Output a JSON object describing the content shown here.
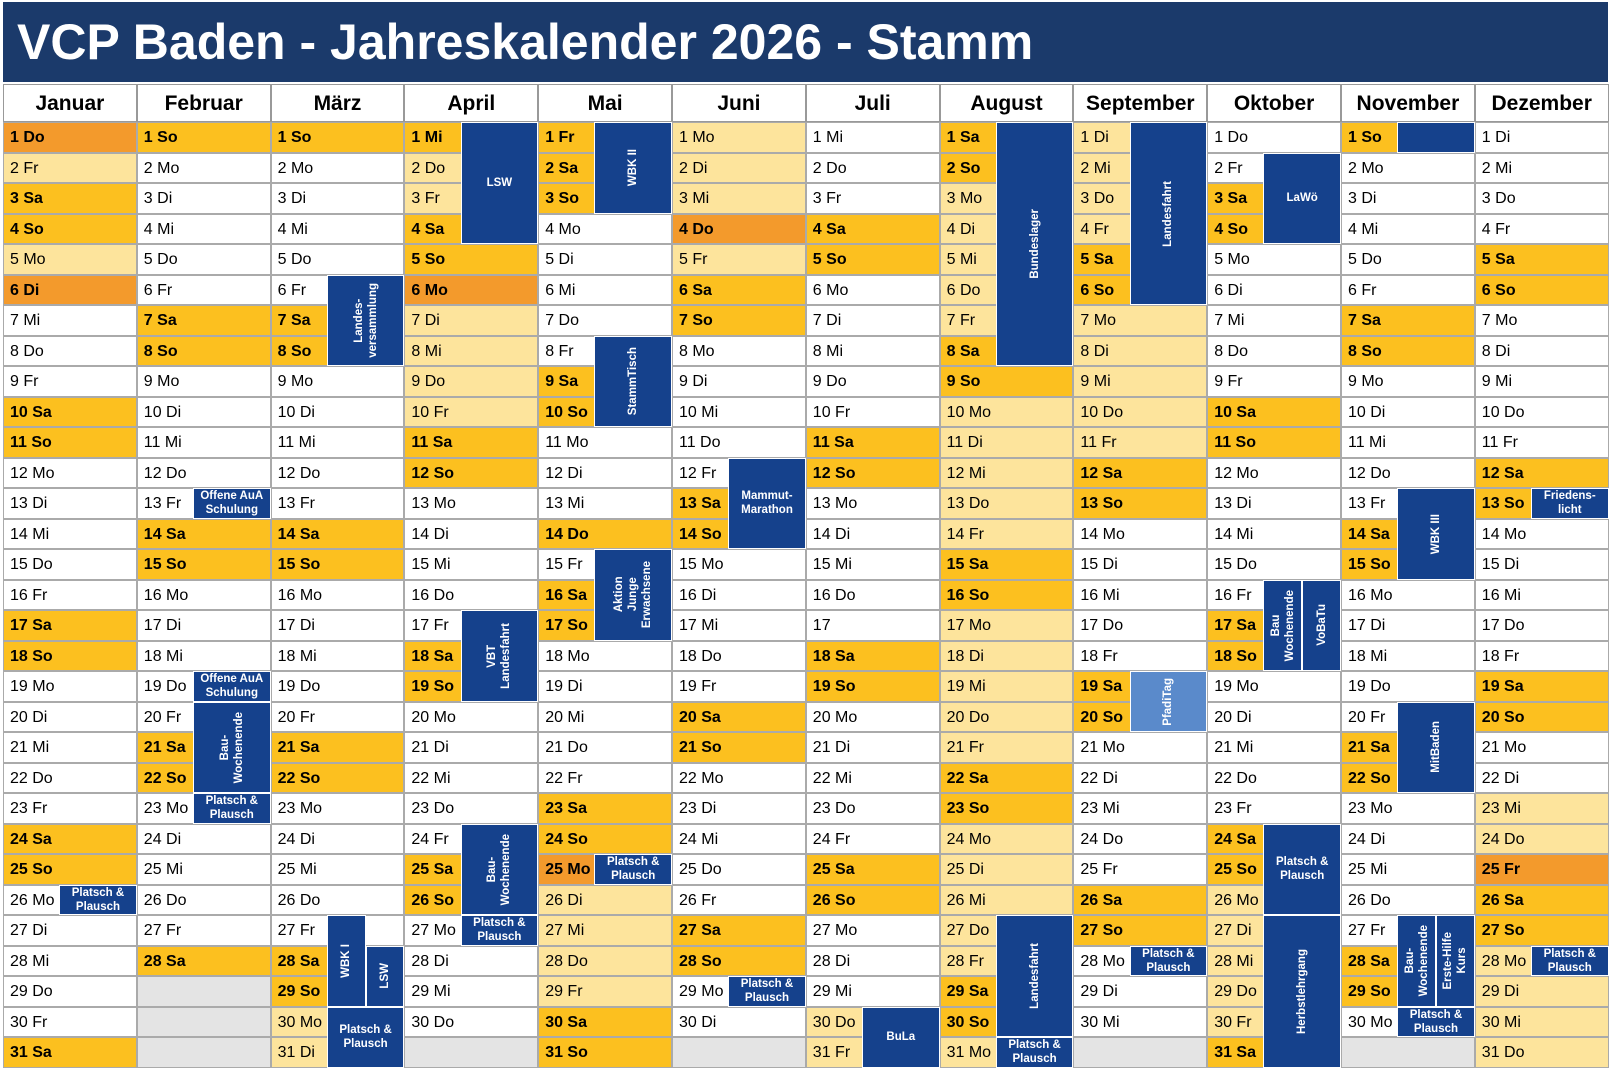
{
  "title": "VCP Baden - Jahreskalender 2026 - Stamm",
  "colors": {
    "orange": "#f39a2c",
    "gold": "#fcc01f",
    "light": "#fde49c",
    "event": "#15418c",
    "grey": "#e4e4e4"
  },
  "months": [
    {
      "name": "Januar",
      "days": [
        "1 Do",
        "2 Fr",
        "3 Sa",
        "4 So",
        "5 Mo",
        "6 Di",
        "7 Mi",
        "8 Do",
        "9 Fr",
        "10 Sa",
        "11 So",
        "12 Mo",
        "13 Di",
        "14 Mi",
        "15 Do",
        "16 Fr",
        "17 Sa",
        "18 So",
        "19 Mo",
        "20 Di",
        "21 Mi",
        "22 Do",
        "23 Fr",
        "24 Sa",
        "25 So",
        "26 Mo",
        "27 Di",
        "28 Mi",
        "29 Do",
        "30 Fr",
        "31 Sa"
      ],
      "orange": [
        1,
        6
      ],
      "gold": [
        3,
        4,
        10,
        11,
        17,
        18,
        24,
        25,
        31
      ],
      "light": [
        2,
        5
      ],
      "events": [
        {
          "label": "Platsch &\nPlausch",
          "from": 26,
          "to": 26
        }
      ]
    },
    {
      "name": "Februar",
      "days": [
        "1 So",
        "2 Mo",
        "3 Di",
        "4 Mi",
        "5 Do",
        "6 Fr",
        "7 Sa",
        "8 So",
        "9 Mo",
        "10 Di",
        "11 Mi",
        "12 Do",
        "13 Fr",
        "14 Sa",
        "15 So",
        "16 Mo",
        "17 Di",
        "18 Mi",
        "19 Do",
        "20 Fr",
        "21 Sa",
        "22 So",
        "23 Mo",
        "24 Di",
        "25 Mi",
        "26 Do",
        "27 Fr",
        "28 Sa"
      ],
      "orange": [],
      "gold": [
        1,
        7,
        8,
        14,
        15,
        21,
        22,
        28
      ],
      "light": [],
      "events": [
        {
          "label": "Offene AuA\nSchulung",
          "from": 13,
          "to": 13
        },
        {
          "label": "Offene AuA\nSchulung",
          "from": 19,
          "to": 19
        },
        {
          "label": "Bau-\nWochenende",
          "from": 20,
          "to": 22,
          "vertical": true
        },
        {
          "label": "Platsch &\nPlausch",
          "from": 23,
          "to": 23
        }
      ]
    },
    {
      "name": "März",
      "days": [
        "1 So",
        "2 Mo",
        "3 Di",
        "4 Mi",
        "5 Do",
        "6 Fr",
        "7 Sa",
        "8 So",
        "9 Mo",
        "10 Di",
        "11 Mi",
        "12 Do",
        "13 Fr",
        "14 Sa",
        "15 So",
        "16 Mo",
        "17 Di",
        "18 Mi",
        "19 Do",
        "20 Fr",
        "21 Sa",
        "22 So",
        "23 Mo",
        "24 Di",
        "25 Mi",
        "26 Do",
        "27 Fr",
        "28 Sa",
        "29 So",
        "30 Mo",
        "31 Di"
      ],
      "orange": [],
      "gold": [
        1,
        7,
        8,
        14,
        15,
        21,
        22,
        28,
        29
      ],
      "light": [
        30,
        31
      ],
      "events": [
        {
          "label": "Landes-\nversammlung",
          "from": 6,
          "to": 8,
          "vertical": true
        },
        {
          "label": "WBK I",
          "from": 27,
          "to": 29,
          "vertical": true,
          "lane": 1
        },
        {
          "label": "LSW",
          "from": 28,
          "to": 29,
          "vertical": true,
          "lane": 2
        },
        {
          "label": "Platsch &\nPlausch",
          "from": 30,
          "to": 31
        }
      ]
    },
    {
      "name": "April",
      "days": [
        "1 Mi",
        "2 Do",
        "3 Fr",
        "4 Sa",
        "5 So",
        "6 Mo",
        "7 Di",
        "8 Mi",
        "9 Do",
        "10 Fr",
        "11 Sa",
        "12 So",
        "13 Mo",
        "14 Di",
        "15 Mi",
        "16 Do",
        "17 Fr",
        "18 Sa",
        "19 So",
        "20 Mo",
        "21 Di",
        "22 Mi",
        "23 Do",
        "24 Fr",
        "25 Sa",
        "26 So",
        "27 Mo",
        "28 Di",
        "29 Mi",
        "30 Do"
      ],
      "orange": [
        6
      ],
      "gold": [
        1,
        4,
        5,
        11,
        12,
        18,
        19,
        25,
        26
      ],
      "light": [
        2,
        3,
        7,
        8,
        9,
        10
      ],
      "events": [
        {
          "label": "LSW",
          "from": 1,
          "to": 4
        },
        {
          "label": "VBT\nLandesfahrt",
          "from": 17,
          "to": 19,
          "vertical": true
        },
        {
          "label": "Bau-\nWochenende",
          "from": 24,
          "to": 26,
          "vertical": true
        },
        {
          "label": "Platsch &\nPlausch",
          "from": 27,
          "to": 27
        }
      ]
    },
    {
      "name": "Mai",
      "days": [
        "1 Fr",
        "2 Sa",
        "3 So",
        "4 Mo",
        "5 Di",
        "6 Mi",
        "7 Do",
        "8 Fr",
        "9 Sa",
        "10 So",
        "11 Mo",
        "12 Di",
        "13 Mi",
        "14 Do",
        "15 Fr",
        "16 Sa",
        "17 So",
        "18 Mo",
        "19 Di",
        "20 Mi",
        "21 Do",
        "22 Fr",
        "23 Sa",
        "24 So",
        "25 Mo",
        "26 Di",
        "27 Mi",
        "28 Do",
        "29 Fr",
        "30 Sa",
        "31 So"
      ],
      "orange": [
        25
      ],
      "gold": [
        1,
        2,
        3,
        9,
        10,
        14,
        16,
        17,
        23,
        24,
        30,
        31
      ],
      "light": [
        26,
        27,
        28,
        29
      ],
      "events": [
        {
          "label": "WBK II",
          "from": 1,
          "to": 3,
          "vertical": true
        },
        {
          "label": "StammTisch",
          "from": 8,
          "to": 10,
          "vertical": true
        },
        {
          "label": "Aktion\nJunge\nErwachsene",
          "from": 15,
          "to": 17,
          "vertical": true
        },
        {
          "label": "Platsch &\nPlausch",
          "from": 25,
          "to": 25
        }
      ]
    },
    {
      "name": "Juni",
      "days": [
        "1 Mo",
        "2 Di",
        "3 Mi",
        "4 Do",
        "5 Fr",
        "6 Sa",
        "7 So",
        "8 Mo",
        "9 Di",
        "10 Mi",
        "11 Do",
        "12 Fr",
        "13 Sa",
        "14 So",
        "15 Mo",
        "16 Di",
        "17 Mi",
        "18 Do",
        "19 Fr",
        "20 Sa",
        "21 So",
        "22 Mo",
        "23 Di",
        "24 Mi",
        "25 Do",
        "26 Fr",
        "27 Sa",
        "28 So",
        "29 Mo",
        "30 Di"
      ],
      "orange": [
        4
      ],
      "gold": [
        6,
        7,
        13,
        14,
        20,
        21,
        27,
        28
      ],
      "light": [
        1,
        2,
        3,
        5
      ],
      "events": [
        {
          "label": "Mammut-\nMarathon",
          "from": 12,
          "to": 14
        },
        {
          "label": "Platsch &\nPlausch",
          "from": 29,
          "to": 29
        }
      ]
    },
    {
      "name": "Juli",
      "days": [
        "1 Mi",
        "2 Do",
        "3 Fr",
        "4 Sa",
        "5 So",
        "6 Mo",
        "7 Di",
        "8 Mi",
        "9 Do",
        "10 Fr",
        "11 Sa",
        "12 So",
        "13 Mo",
        "14 Di",
        "15 Mi",
        "16 Do",
        "17",
        "18 Sa",
        "19 So",
        "20 Mo",
        "21 Di",
        "22 Mi",
        "23 Do",
        "24 Fr",
        "25 Sa",
        "26 So",
        "27 Mo",
        "28 Di",
        "29 Mi",
        "30 Do",
        "31 Fr"
      ],
      "orange": [],
      "gold": [
        4,
        5,
        11,
        12,
        18,
        19,
        25,
        26
      ],
      "light": [
        30,
        31
      ],
      "events": [
        {
          "label": "BuLa",
          "from": 30,
          "to": 31
        }
      ]
    },
    {
      "name": "August",
      "days": [
        "1 Sa",
        "2 So",
        "3 Mo",
        "4 Di",
        "5 Mi",
        "6 Do",
        "7 Fr",
        "8 Sa",
        "9 So",
        "10 Mo",
        "11 Di",
        "12 Mi",
        "13 Do",
        "14 Fr",
        "15 Sa",
        "16 So",
        "17 Mo",
        "18 Di",
        "19 Mi",
        "20 Do",
        "21 Fr",
        "22 Sa",
        "23 So",
        "24 Mo",
        "25 Di",
        "26 Mi",
        "27 Do",
        "28 Fr",
        "29 Sa",
        "30 So",
        "31 Mo"
      ],
      "orange": [],
      "gold": [
        1,
        2,
        8,
        9,
        15,
        16,
        22,
        23,
        29,
        30
      ],
      "light": [
        3,
        4,
        5,
        6,
        7,
        10,
        11,
        12,
        13,
        14,
        17,
        18,
        19,
        20,
        21,
        24,
        25,
        26,
        27,
        28,
        31
      ],
      "events": [
        {
          "label": "Bundeslager",
          "from": 1,
          "to": 8,
          "vertical": true
        },
        {
          "label": "Landesfahrt",
          "from": 27,
          "to": 30,
          "vertical": true
        },
        {
          "label": "Platsch &\nPlausch",
          "from": 31,
          "to": 31
        }
      ]
    },
    {
      "name": "September",
      "days": [
        "1 Di",
        "2 Mi",
        "3 Do",
        "4 Fr",
        "5 Sa",
        "6 So",
        "7 Mo",
        "8 Di",
        "9 Mi",
        "10 Do",
        "11 Fr",
        "12 Sa",
        "13 So",
        "14 Mo",
        "15 Di",
        "16 Mi",
        "17 Do",
        "18 Fr",
        "19 Sa",
        "20 So",
        "21 Mo",
        "22 Di",
        "23 Mi",
        "24 Do",
        "25 Fr",
        "26 Sa",
        "27 So",
        "28 Mo",
        "29 Di",
        "30 Mi"
      ],
      "orange": [],
      "gold": [
        5,
        6,
        12,
        13,
        19,
        20,
        26,
        27
      ],
      "light": [
        1,
        2,
        3,
        4,
        7,
        8,
        9,
        10,
        11
      ],
      "events": [
        {
          "label": "Landesfahrt",
          "from": 1,
          "to": 6,
          "vertical": true
        },
        {
          "label": "PfadiTag",
          "from": 19,
          "to": 20,
          "vertical": true,
          "color": "#5a8acb"
        },
        {
          "label": "Platsch &\nPlausch",
          "from": 28,
          "to": 28
        }
      ]
    },
    {
      "name": "Oktober",
      "days": [
        "1 Do",
        "2 Fr",
        "3 Sa",
        "4 So",
        "5 Mo",
        "6 Di",
        "7 Mi",
        "8 Do",
        "9 Fr",
        "10 Sa",
        "11 So",
        "12 Mo",
        "13 Di",
        "14 Mi",
        "15 Do",
        "16 Fr",
        "17 Sa",
        "18 So",
        "19 Mo",
        "20 Di",
        "21 Mi",
        "22 Do",
        "23 Fr",
        "24 Sa",
        "25 So",
        "26 Mo",
        "27 Di",
        "28 Mi",
        "29 Do",
        "30 Fr",
        "31 Sa"
      ],
      "orange": [],
      "gold": [
        3,
        4,
        10,
        11,
        17,
        18,
        24,
        25,
        31
      ],
      "light": [
        26,
        27,
        28,
        29,
        30
      ],
      "events": [
        {
          "label": "LaWö",
          "from": 2,
          "to": 4
        },
        {
          "label": "Bau\nWochenende",
          "from": 16,
          "to": 18,
          "vertical": true,
          "lane": 1
        },
        {
          "label": "VoBaTu",
          "from": 16,
          "to": 18,
          "vertical": true,
          "lane": 2
        },
        {
          "label": "Platsch &\nPlausch",
          "from": 24,
          "to": 26
        },
        {
          "label": "Herbstlehrgang",
          "from": 27,
          "to": 31,
          "vertical": true
        }
      ]
    },
    {
      "name": "November",
      "days": [
        "1 So",
        "2 Mo",
        "3 Di",
        "4 Mi",
        "5 Do",
        "6 Fr",
        "7 Sa",
        "8 So",
        "9 Mo",
        "10 Di",
        "11 Mi",
        "12 Do",
        "13 Fr",
        "14 Sa",
        "15 So",
        "16 Mo",
        "17 Di",
        "18 Mi",
        "19 Do",
        "20 Fr",
        "21 Sa",
        "22 So",
        "23 Mo",
        "24 Di",
        "25 Mi",
        "26 Do",
        "27 Fr",
        "28 Sa",
        "29 So",
        "30 Mo"
      ],
      "orange": [],
      "gold": [
        1,
        7,
        8,
        14,
        15,
        21,
        22,
        28,
        29
      ],
      "light": [],
      "events": [
        {
          "from": 1,
          "to": 1
        },
        {
          "label": "WBK III",
          "from": 13,
          "to": 15,
          "vertical": true
        },
        {
          "label": "MitBaden",
          "from": 20,
          "to": 22,
          "vertical": true
        },
        {
          "label": "Bau-\nWochenende",
          "from": 27,
          "to": 29,
          "vertical": true,
          "lane": 1
        },
        {
          "label": "Erste-Hilfe\nKurs",
          "from": 27,
          "to": 29,
          "vertical": true,
          "lane": 2
        },
        {
          "label": "Platsch &\nPlausch",
          "from": 30,
          "to": 30
        }
      ]
    },
    {
      "name": "Dezember",
      "days": [
        "1 Di",
        "2 Mi",
        "3 Do",
        "4 Fr",
        "5 Sa",
        "6 So",
        "7 Mo",
        "8 Di",
        "9 Mi",
        "10 Do",
        "11 Fr",
        "12 Sa",
        "13 So",
        "14 Mo",
        "15 Di",
        "16 Mi",
        "17 Do",
        "18 Fr",
        "19 Sa",
        "20 So",
        "21 Mo",
        "22 Di",
        "23 Mi",
        "24 Do",
        "25 Fr",
        "26 Sa",
        "27 So",
        "28 Mo",
        "29 Di",
        "30 Mi",
        "31 Do"
      ],
      "orange": [
        25
      ],
      "gold": [
        5,
        6,
        12,
        13,
        19,
        20,
        26,
        27
      ],
      "light": [
        23,
        24,
        28,
        29,
        30,
        31
      ],
      "events": [
        {
          "label": "Friedens-\nlicht",
          "from": 13,
          "to": 13
        },
        {
          "label": "Platsch &\nPlausch",
          "from": 28,
          "to": 28
        }
      ]
    }
  ]
}
